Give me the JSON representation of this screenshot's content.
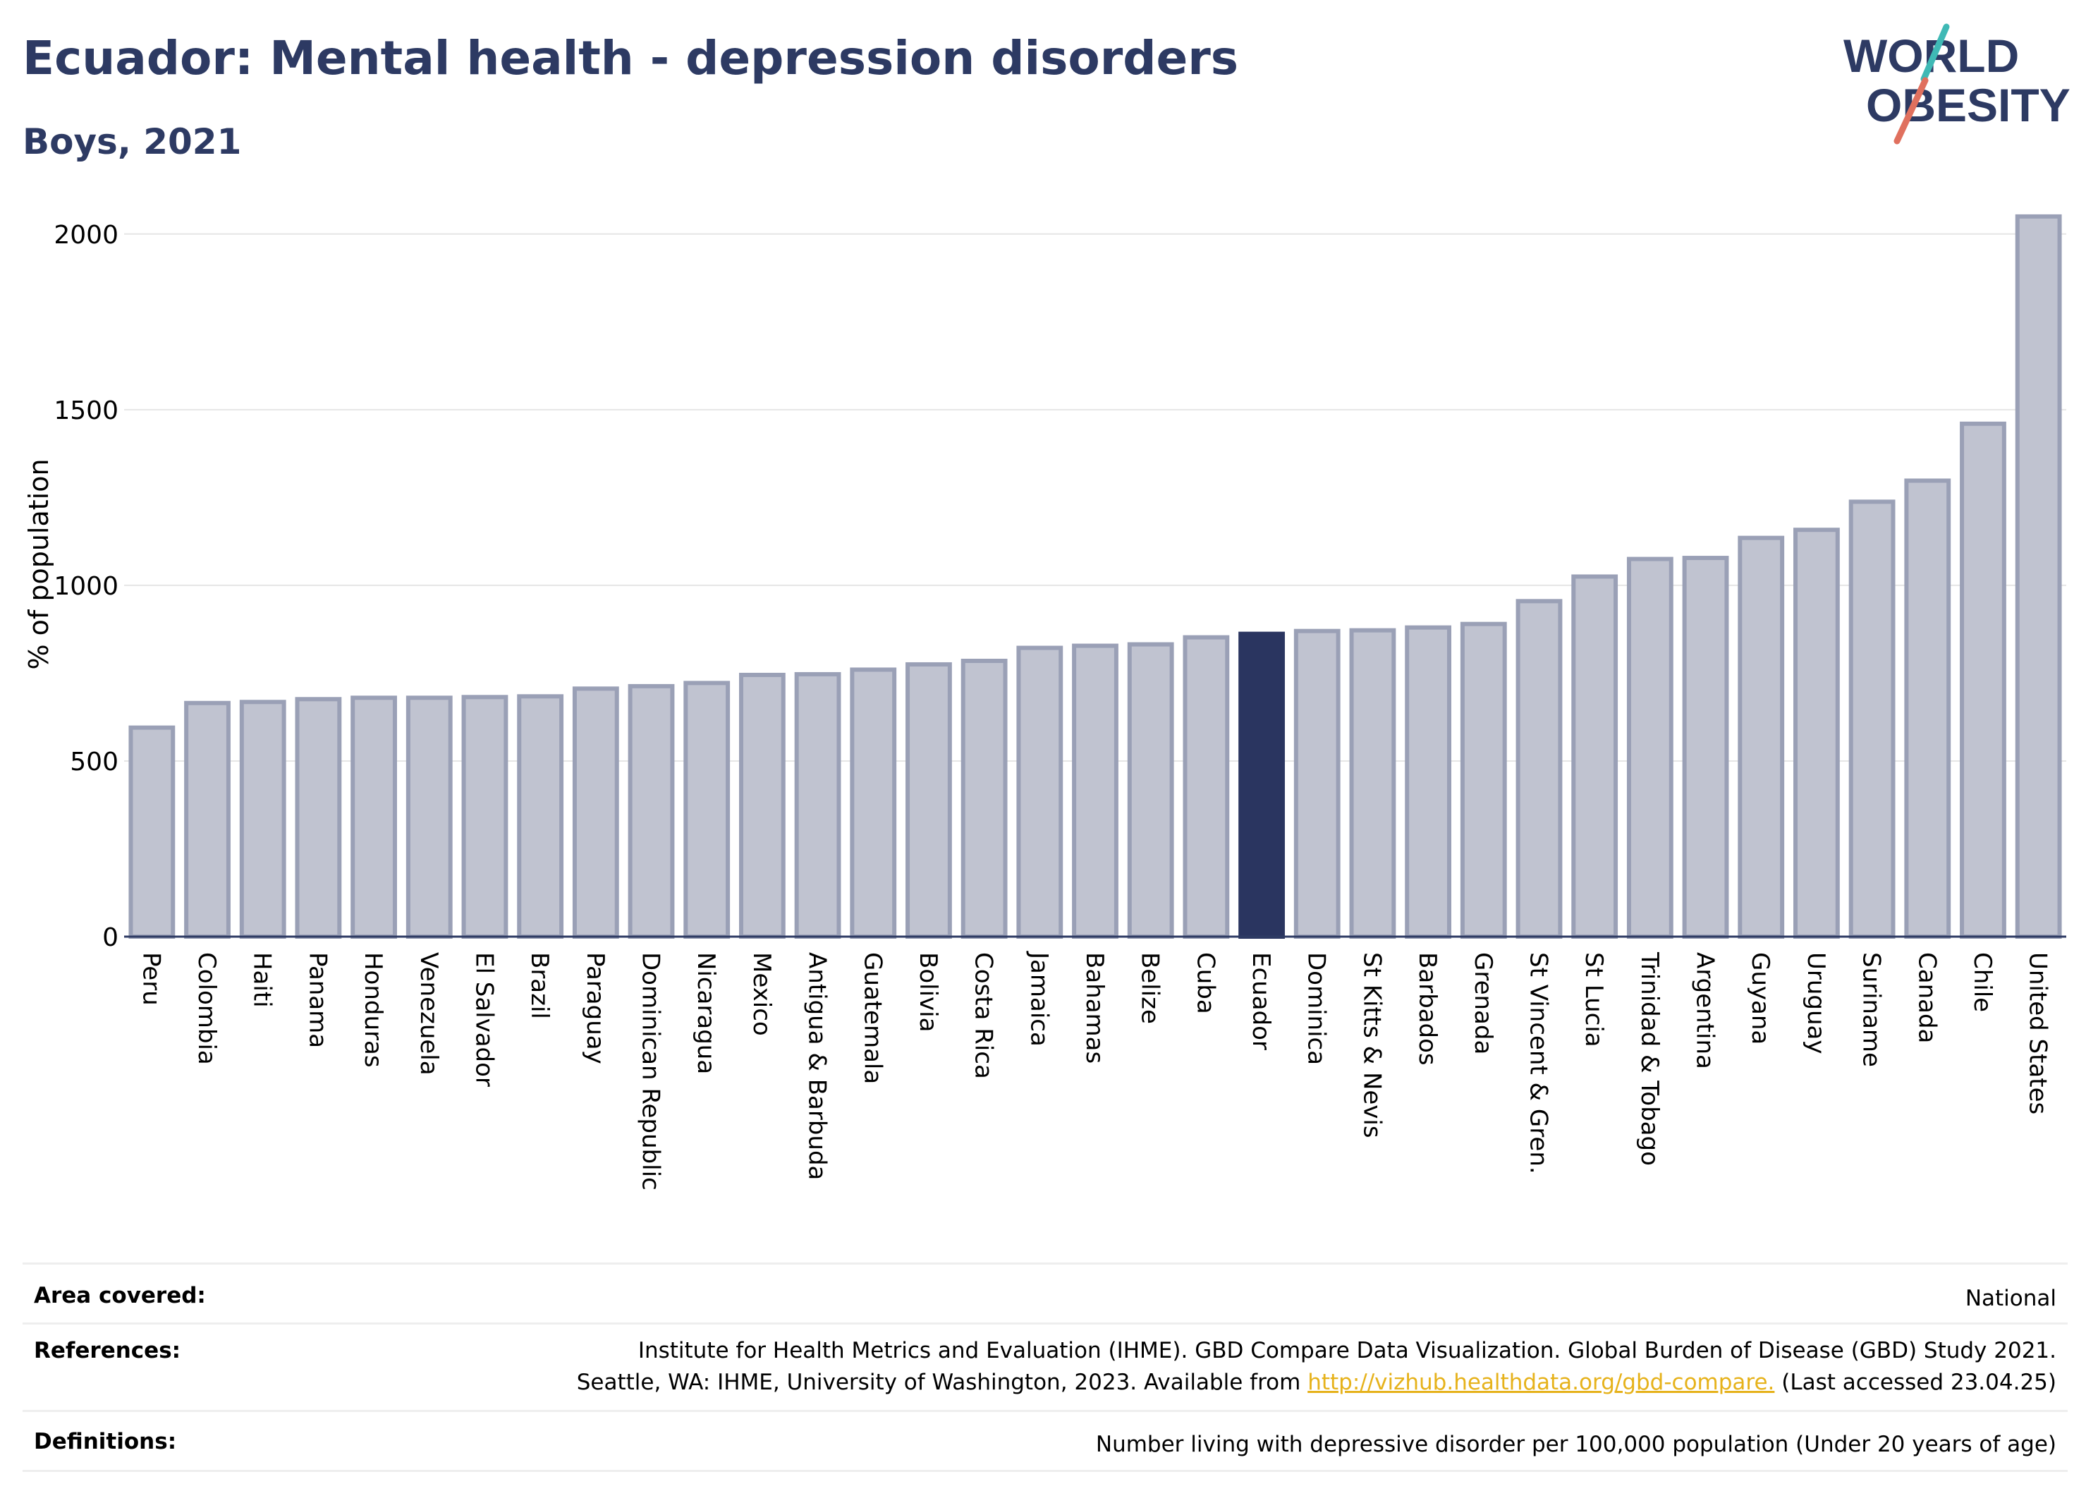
{
  "header": {
    "title": "Ecuador: Mental health - depression disorders",
    "subtitle": "Boys, 2021"
  },
  "logo": {
    "line1": "WORLD",
    "line2": "OBESITY"
  },
  "colors": {
    "title": "#2d3a63",
    "bar_fill": "#c0c3d0",
    "bar_stroke": "#9aa0b6",
    "highlight": "#2a3560",
    "logo_teal": "#3fb9b5",
    "logo_coral": "#e0705e",
    "link": "#e6b21b"
  },
  "chart_data": {
    "type": "bar",
    "ylabel": "% of population",
    "ylim": [
      0,
      2100
    ],
    "yticks": [
      0,
      500,
      1000,
      1500,
      2000
    ],
    "grid": true,
    "highlight": "Ecuador",
    "categories": [
      "Peru",
      "Colombia",
      "Haiti",
      "Panama",
      "Honduras",
      "Venezuela",
      "El Salvador",
      "Brazil",
      "Paraguay",
      "Dominican Republic",
      "Nicaragua",
      "Mexico",
      "Antigua & Barbuda",
      "Guatemala",
      "Bolivia",
      "Costa Rica",
      "Jamaica",
      "Bahamas",
      "Belize",
      "Cuba",
      "Ecuador",
      "Dominica",
      "St Kitts & Nevis",
      "Barbados",
      "Grenada",
      "St Vincent & Gren.",
      "St Lucia",
      "Trinidad & Tobago",
      "Argentina",
      "Guyana",
      "Uruguay",
      "Suriname",
      "Canada",
      "Chile",
      "United States"
    ],
    "values": [
      595,
      665,
      668,
      676,
      680,
      680,
      682,
      684,
      706,
      713,
      722,
      745,
      747,
      760,
      775,
      785,
      822,
      828,
      832,
      852,
      862,
      870,
      872,
      880,
      890,
      955,
      1025,
      1075,
      1078,
      1135,
      1158,
      1238,
      1298,
      1460,
      2050
    ]
  },
  "footer": {
    "area_label": "Area covered:",
    "area_value": "National",
    "references_label": "References:",
    "references_line1": "Institute for Health Metrics and Evaluation (IHME). GBD Compare Data Visualization. Global Burden of Disease (GBD) Study 2021.",
    "references_line2_pre": "Seattle, WA: IHME, University of Washington, 2023. Available from",
    "references_link": "http://vizhub.healthdata.org/gbd-compare.",
    "references_line2_post": "(Last accessed 23.04.25)",
    "definitions_label": "Definitions:",
    "definitions_value": "Number living with depressive disorder per 100,000 population (Under 20 years of age)"
  }
}
